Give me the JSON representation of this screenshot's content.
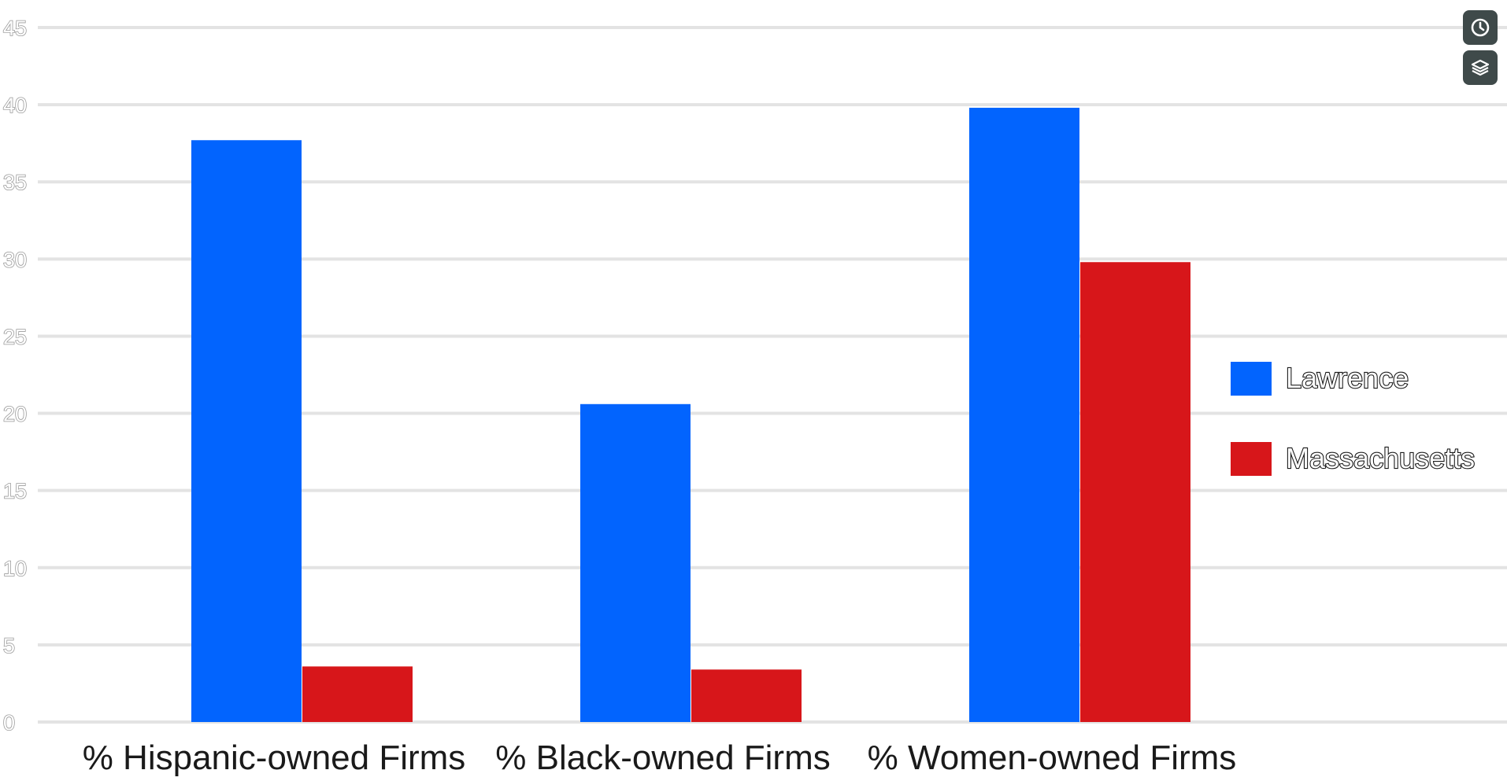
{
  "chart_data": {
    "type": "bar",
    "categories": [
      "% Hispanic-owned Firms",
      "% Black-owned Firms",
      "% Women-owned Firms"
    ],
    "series": [
      {
        "name": "Lawrence",
        "color": "#0264fe",
        "values": [
          37.7,
          20.6,
          39.8
        ]
      },
      {
        "name": "Massachusetts",
        "color": "#d7161a",
        "values": [
          3.6,
          3.4,
          29.8
        ]
      }
    ],
    "yticks": [
      0,
      5,
      10,
      15,
      20,
      25,
      30,
      35,
      40,
      45
    ],
    "ylim": [
      0,
      45
    ],
    "grid": true,
    "legend_position": "right"
  },
  "toolbar": {
    "items": [
      {
        "icon": "clock-icon"
      },
      {
        "icon": "layers-icon"
      }
    ]
  }
}
